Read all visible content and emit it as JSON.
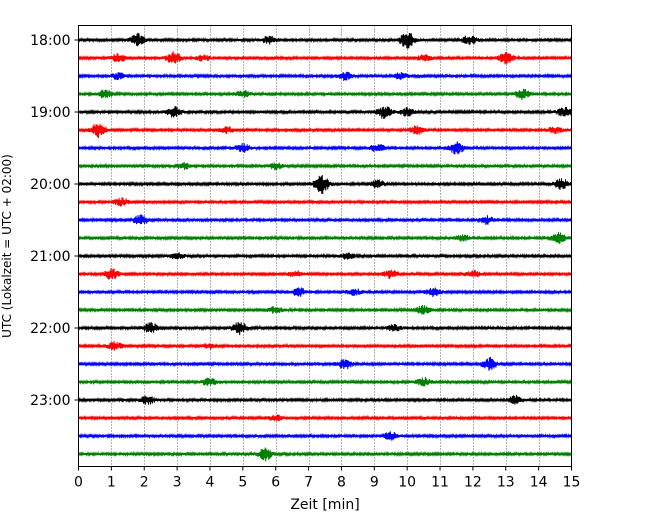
{
  "chart_data": {
    "type": "line",
    "title": "",
    "xlabel": "Zeit  [min]",
    "ylabel": "UTC (Lokalzeit = UTC + 02:00)",
    "xlim": [
      0,
      15
    ],
    "x_ticks": [
      "0",
      "1",
      "2",
      "3",
      "4",
      "5",
      "6",
      "7",
      "8",
      "9",
      "10",
      "11",
      "12",
      "13",
      "14",
      "15"
    ],
    "y_tick_labels": [
      "18:00",
      "19:00",
      "20:00",
      "21:00",
      "22:00",
      "23:00"
    ],
    "grid": "vertical dotted",
    "trace_interval_minutes": 15,
    "trace_colors_cycle": [
      "#000000",
      "#ff0000",
      "#0000ff",
      "#008000"
    ],
    "traces": [
      {
        "start": "18:00",
        "color": "#000000",
        "events": [
          [
            1.8,
            6
          ],
          [
            5.8,
            4
          ],
          [
            10.0,
            8
          ],
          [
            11.9,
            5
          ]
        ]
      },
      {
        "start": "18:15",
        "color": "#ff0000",
        "events": [
          [
            1.2,
            4
          ],
          [
            2.9,
            6
          ],
          [
            3.8,
            3
          ],
          [
            10.5,
            3
          ],
          [
            13.0,
            6
          ]
        ]
      },
      {
        "start": "18:30",
        "color": "#0000ff",
        "events": [
          [
            1.2,
            3
          ],
          [
            8.1,
            4
          ],
          [
            9.8,
            3
          ]
        ]
      },
      {
        "start": "18:45",
        "color": "#008000",
        "events": [
          [
            0.8,
            4
          ],
          [
            5.0,
            3
          ],
          [
            13.5,
            5
          ]
        ]
      },
      {
        "start": "19:00",
        "color": "#000000",
        "events": [
          [
            2.9,
            5
          ],
          [
            9.3,
            6
          ],
          [
            10.0,
            4
          ],
          [
            14.8,
            5
          ]
        ]
      },
      {
        "start": "19:15",
        "color": "#ff0000",
        "events": [
          [
            0.6,
            7
          ],
          [
            4.5,
            3
          ],
          [
            10.3,
            4
          ],
          [
            14.5,
            3
          ]
        ]
      },
      {
        "start": "19:30",
        "color": "#0000ff",
        "events": [
          [
            5.0,
            4
          ],
          [
            9.1,
            4
          ],
          [
            11.5,
            6
          ]
        ]
      },
      {
        "start": "19:45",
        "color": "#008000",
        "events": [
          [
            3.2,
            3
          ],
          [
            6.0,
            3
          ]
        ]
      },
      {
        "start": "20:00",
        "color": "#000000",
        "events": [
          [
            7.4,
            9
          ],
          [
            9.1,
            4
          ],
          [
            14.7,
            5
          ]
        ]
      },
      {
        "start": "20:15",
        "color": "#ff0000",
        "events": [
          [
            1.3,
            4
          ]
        ]
      },
      {
        "start": "20:30",
        "color": "#0000ff",
        "events": [
          [
            1.9,
            5
          ],
          [
            12.4,
            4
          ]
        ]
      },
      {
        "start": "20:45",
        "color": "#008000",
        "events": [
          [
            11.7,
            3
          ],
          [
            14.6,
            5
          ]
        ]
      },
      {
        "start": "21:00",
        "color": "#000000",
        "events": [
          [
            3.0,
            3
          ],
          [
            8.2,
            3
          ]
        ]
      },
      {
        "start": "21:15",
        "color": "#ff0000",
        "events": [
          [
            1.0,
            5
          ],
          [
            6.6,
            3
          ],
          [
            9.5,
            4
          ],
          [
            12.0,
            3
          ]
        ]
      },
      {
        "start": "21:30",
        "color": "#0000ff",
        "events": [
          [
            6.7,
            4
          ],
          [
            8.4,
            3
          ],
          [
            10.8,
            4
          ]
        ]
      },
      {
        "start": "21:45",
        "color": "#008000",
        "events": [
          [
            6.0,
            3
          ],
          [
            10.5,
            4
          ]
        ]
      },
      {
        "start": "22:00",
        "color": "#000000",
        "events": [
          [
            2.2,
            5
          ],
          [
            4.9,
            6
          ],
          [
            9.6,
            3
          ]
        ]
      },
      {
        "start": "22:15",
        "color": "#ff0000",
        "events": [
          [
            1.1,
            4
          ],
          [
            4.0,
            3
          ]
        ]
      },
      {
        "start": "22:30",
        "color": "#0000ff",
        "events": [
          [
            8.1,
            5
          ],
          [
            12.5,
            6
          ]
        ]
      },
      {
        "start": "22:45",
        "color": "#008000",
        "events": [
          [
            4.0,
            4
          ],
          [
            10.5,
            4
          ]
        ]
      },
      {
        "start": "23:00",
        "color": "#000000",
        "events": [
          [
            2.1,
            4
          ],
          [
            13.3,
            4
          ]
        ]
      },
      {
        "start": "23:15",
        "color": "#ff0000",
        "events": [
          [
            6.0,
            3
          ]
        ]
      },
      {
        "start": "23:30",
        "color": "#0000ff",
        "events": [
          [
            9.5,
            4
          ]
        ]
      },
      {
        "start": "23:45",
        "color": "#008000",
        "events": [
          [
            5.7,
            6
          ]
        ]
      }
    ]
  }
}
